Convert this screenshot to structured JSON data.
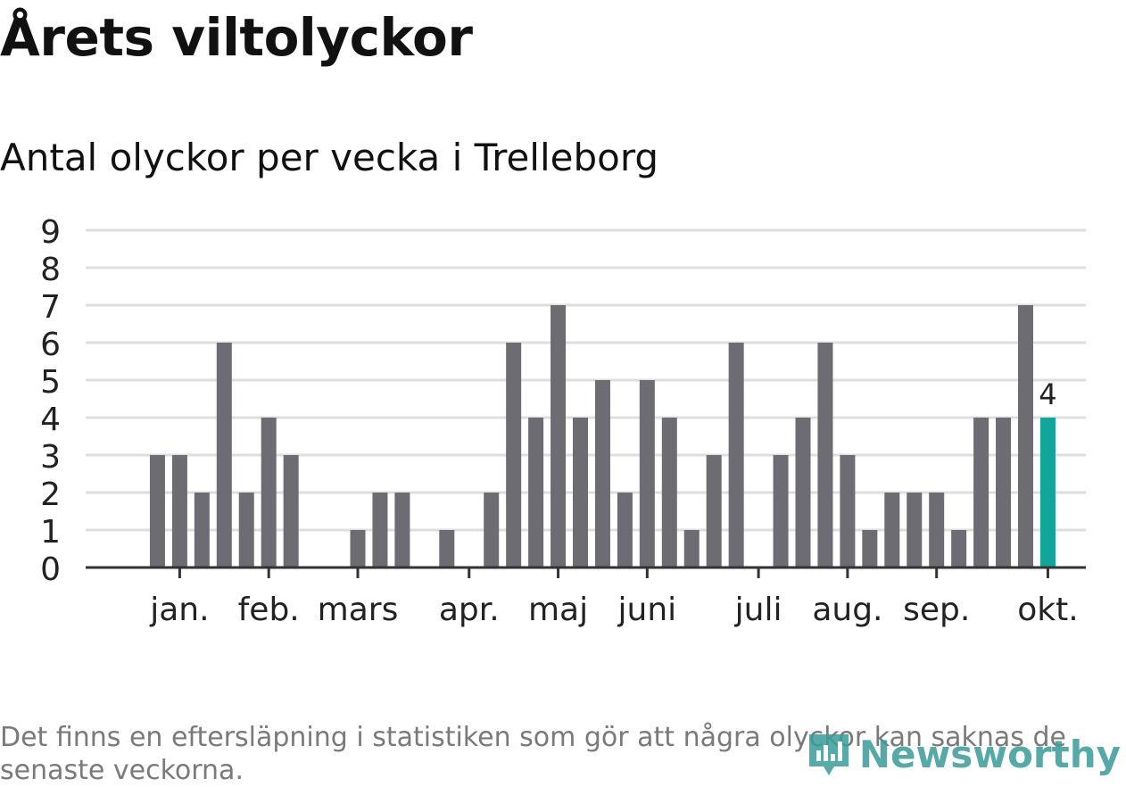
{
  "title": "Årets viltolyckor",
  "subtitle": "Antal olyckor per vecka i Trelleborg",
  "note": "Det finns en eftersläpning i statistiken som gör att några olyckor kan saknas de senaste veckorna.",
  "brand": {
    "name": "Newsworthy",
    "icon": "newsworthy-logo-icon",
    "color": "#3a9b98"
  },
  "colors": {
    "bar": "#6d6c72",
    "highlight": "#11a59b",
    "grid": "#dedede",
    "axis": "#333333"
  },
  "chart_data": {
    "type": "bar",
    "title": "",
    "xlabel": "",
    "ylabel": "",
    "ylim": [
      0,
      9
    ],
    "yticks": [
      0,
      1,
      2,
      3,
      4,
      5,
      6,
      7,
      8,
      9
    ],
    "grid": true,
    "values": [
      0,
      3,
      3,
      2,
      6,
      2,
      4,
      3,
      0,
      0,
      1,
      2,
      2,
      0,
      1,
      0,
      2,
      6,
      4,
      7,
      4,
      5,
      2,
      5,
      4,
      1,
      3,
      6,
      0,
      3,
      4,
      6,
      3,
      1,
      2,
      2,
      2,
      1,
      4,
      4,
      7,
      4
    ],
    "highlight_index": 41,
    "highlight_label": "4",
    "month_labels": [
      {
        "label": "jan.",
        "week_index": 2
      },
      {
        "label": "feb.",
        "week_index": 6
      },
      {
        "label": "mars",
        "week_index": 10
      },
      {
        "label": "apr.",
        "week_index": 15
      },
      {
        "label": "maj",
        "week_index": 19
      },
      {
        "label": "juni",
        "week_index": 23
      },
      {
        "label": "juli",
        "week_index": 28
      },
      {
        "label": "aug.",
        "week_index": 32
      },
      {
        "label": "sep.",
        "week_index": 36
      },
      {
        "label": "okt.",
        "week_index": 41
      }
    ]
  }
}
